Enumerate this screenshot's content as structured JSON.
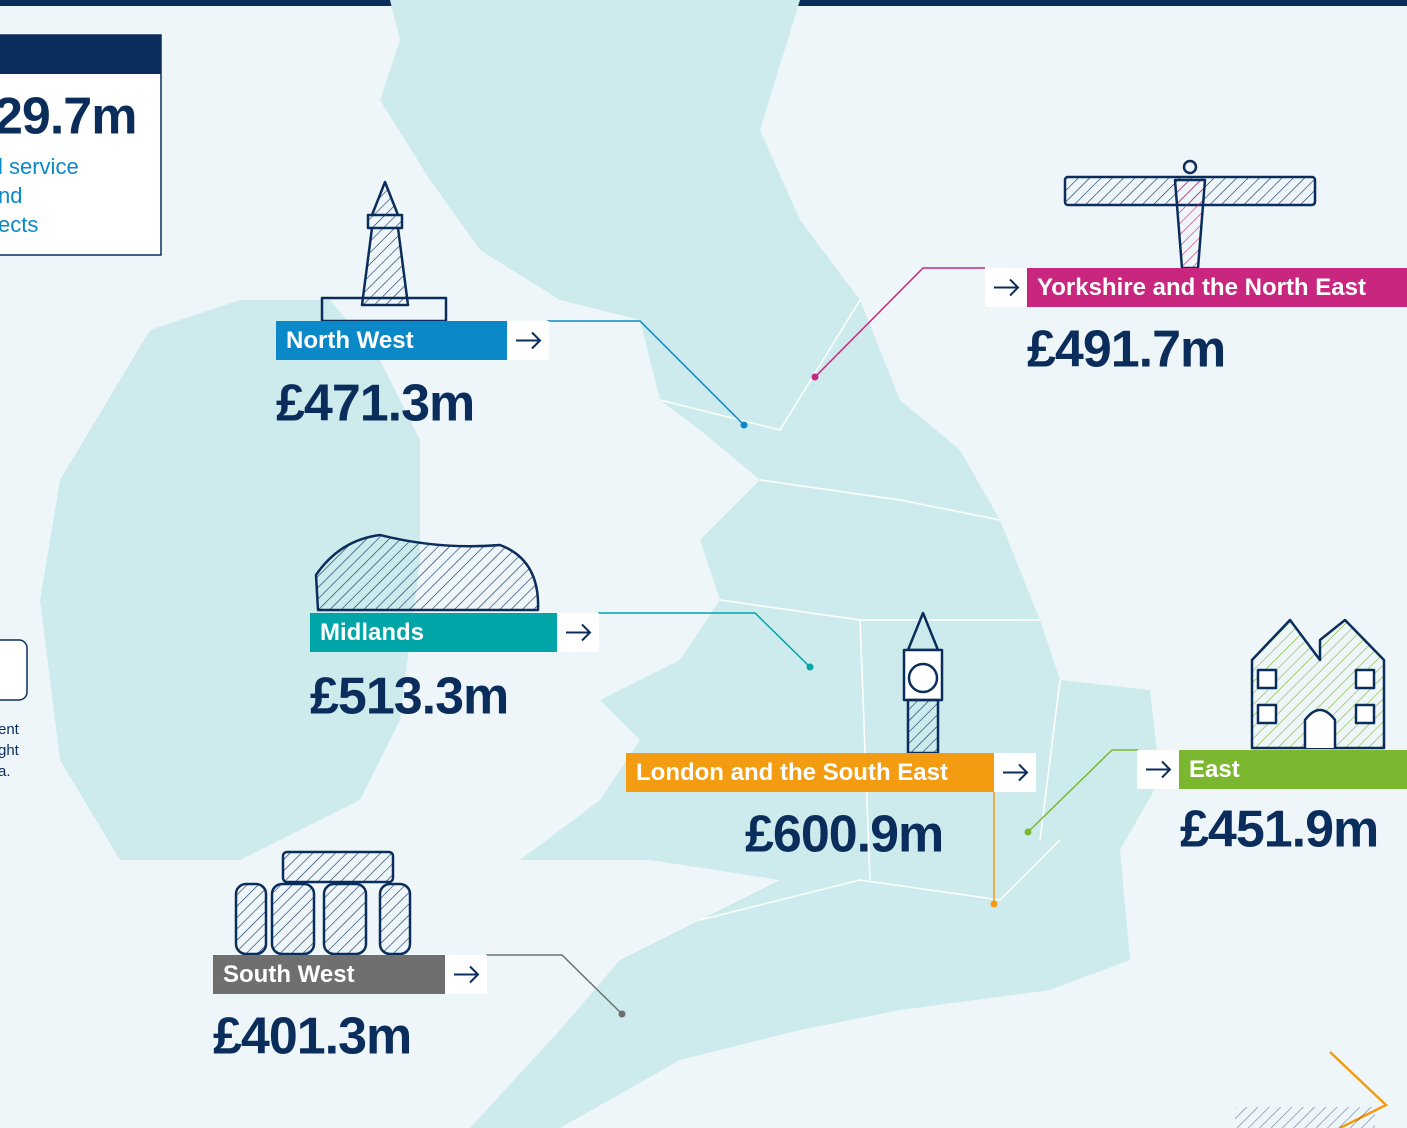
{
  "summary_box": {
    "amount": "29.7m",
    "lines": [
      "l service",
      "nd",
      "ects"
    ]
  },
  "side_note": [
    "ent",
    "ght",
    "a."
  ],
  "regions": [
    {
      "name": "North West",
      "amount": "£471.3m",
      "color": "#0b88c8"
    },
    {
      "name": "Yorkshire and the North East",
      "amount": "£491.7m",
      "color": "#c8267f"
    },
    {
      "name": "Midlands",
      "amount": "£513.3m",
      "color": "#00a5a8"
    },
    {
      "name": "London and the South East",
      "amount": "£600.9m",
      "color": "#f39c12"
    },
    {
      "name": "East",
      "amount": "£451.9m",
      "color": "#7cb82f"
    },
    {
      "name": "South West",
      "amount": "£401.3m",
      "color": "#6f6f6f"
    }
  ]
}
